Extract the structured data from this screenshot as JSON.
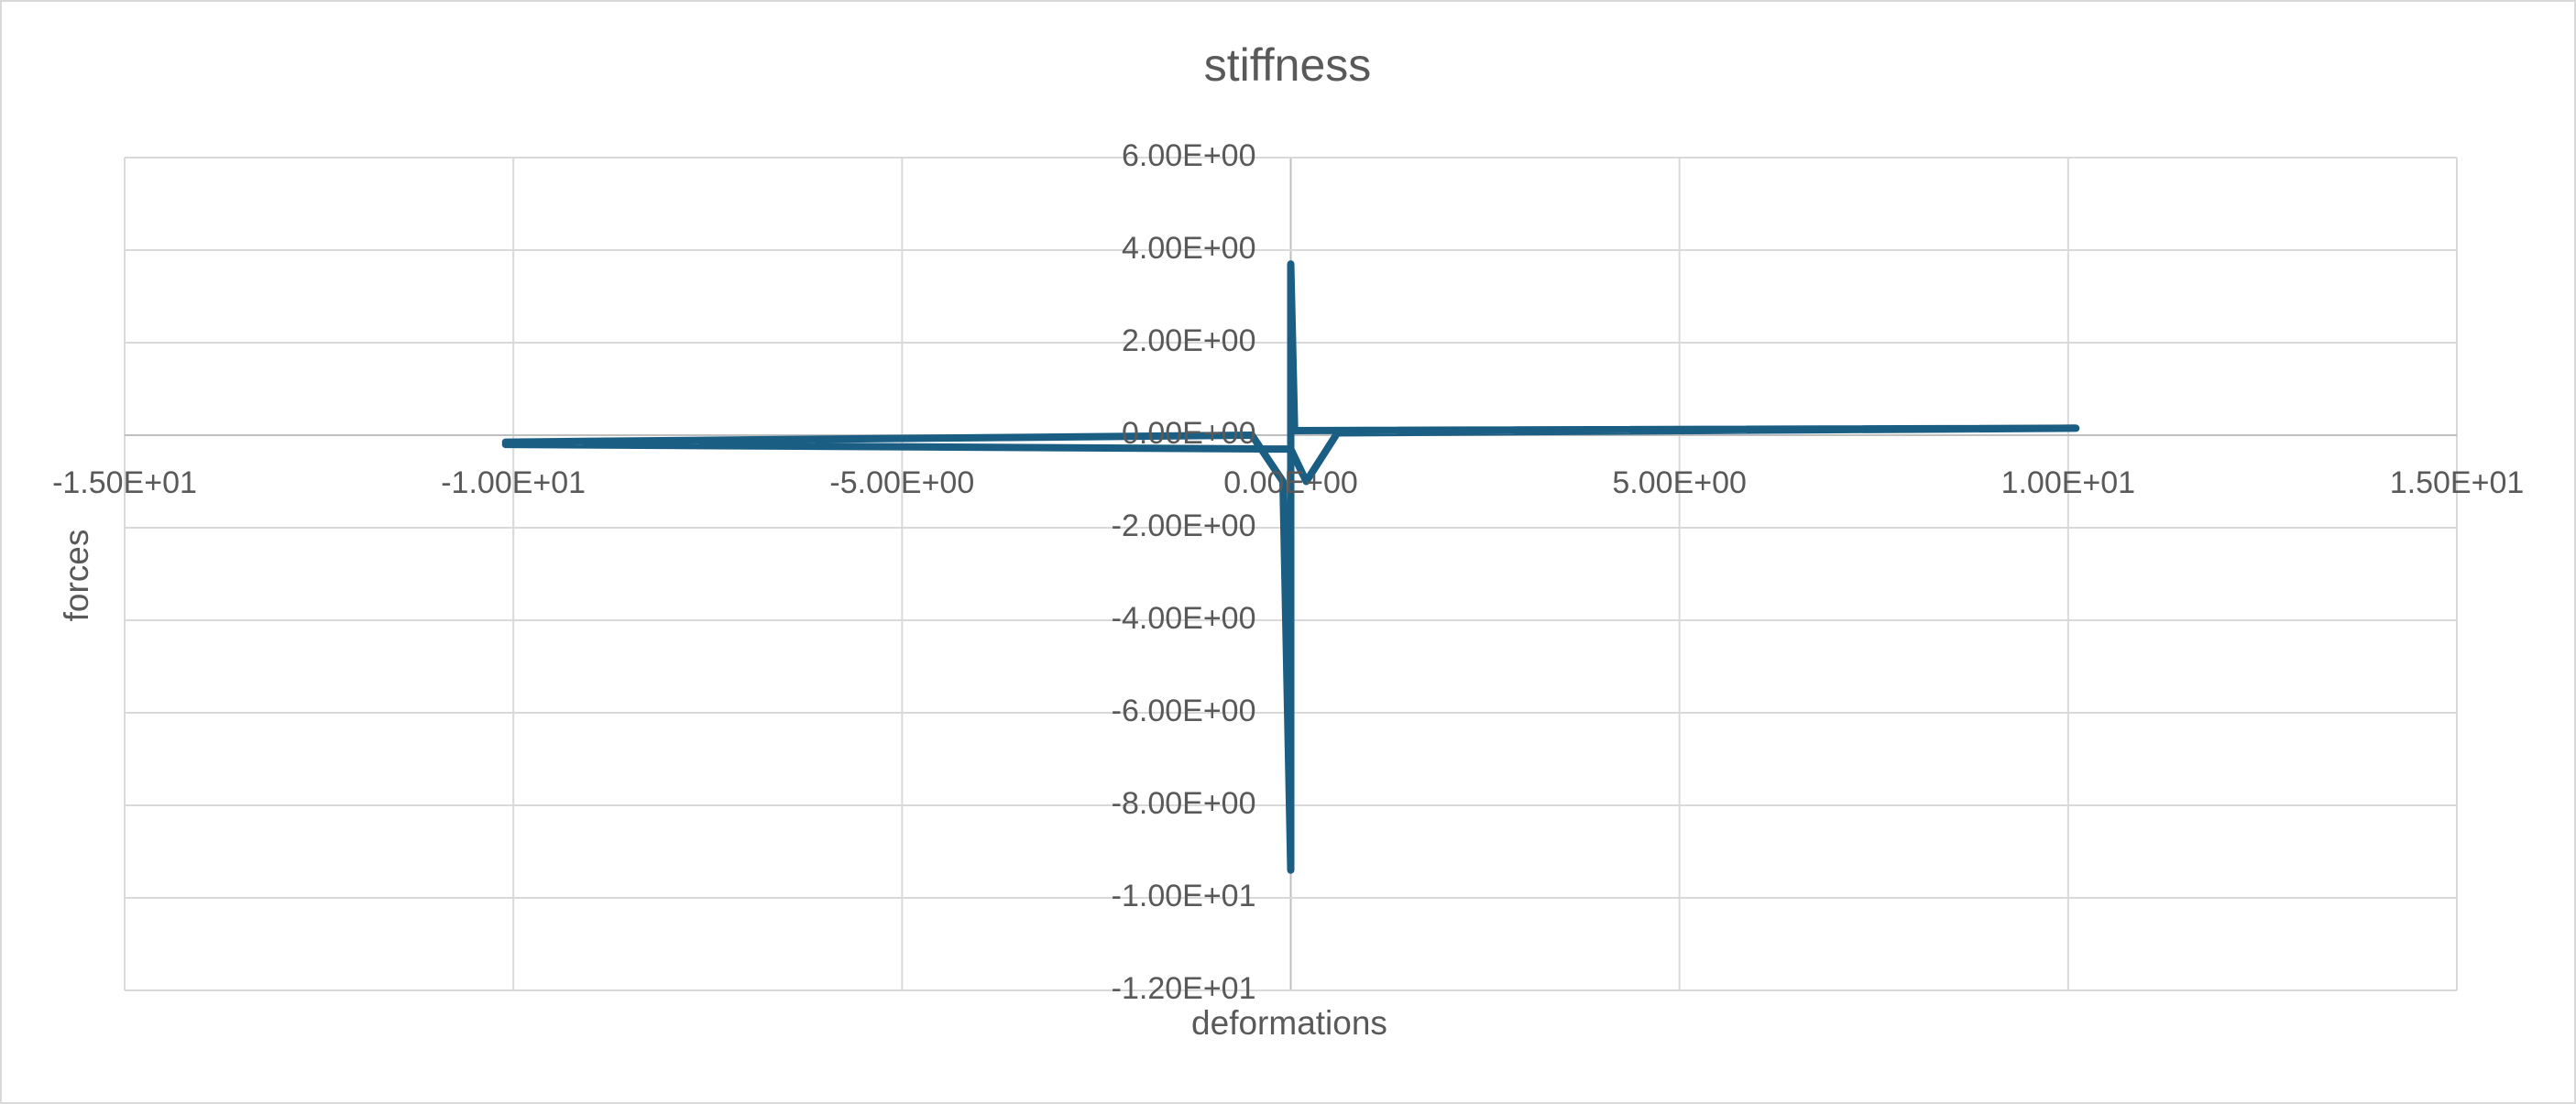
{
  "chart_data": {
    "type": "line",
    "title": "stiffness",
    "x_label": "deformations",
    "y_label": "forces",
    "x": [
      -10.1,
      -0.5,
      -0.1,
      0,
      0,
      0.05,
      10.1,
      0.6,
      0.2,
      0,
      -0.05,
      -10.1
    ],
    "series": [
      {
        "name": "forces",
        "color": "#1b5e84",
        "values": [
          -0.15,
          0.0,
          -1.0,
          -9.4,
          3.7,
          0.1,
          0.15,
          0.05,
          -1.0,
          -0.3,
          -0.3,
          -0.2
        ]
      }
    ],
    "xlim": [
      -15,
      15
    ],
    "xticks": [
      {
        "value": -15,
        "label": "-1.50E+01"
      },
      {
        "value": -10,
        "label": "-1.00E+01"
      },
      {
        "value": -5,
        "label": "-5.00E+00"
      },
      {
        "value": 0,
        "label": "0.00E+00"
      },
      {
        "value": 5,
        "label": "5.00E+00"
      },
      {
        "value": 10,
        "label": "1.00E+01"
      },
      {
        "value": 15,
        "label": "1.50E+01"
      }
    ],
    "ylim": [
      -12,
      6
    ],
    "yticks": [
      {
        "value": -12,
        "label": "-1.20E+01"
      },
      {
        "value": -10,
        "label": "-1.00E+01"
      },
      {
        "value": -8,
        "label": "-8.00E+00"
      },
      {
        "value": -6,
        "label": "-6.00E+00"
      },
      {
        "value": -4,
        "label": "-4.00E+00"
      },
      {
        "value": -2,
        "label": "-2.00E+00"
      },
      {
        "value": 0,
        "label": "0.00E+00"
      },
      {
        "value": 2,
        "label": "2.00E+00"
      },
      {
        "value": 4,
        "label": "4.00E+00"
      },
      {
        "value": 6,
        "label": "6.00E+00"
      }
    ],
    "grid": true
  }
}
